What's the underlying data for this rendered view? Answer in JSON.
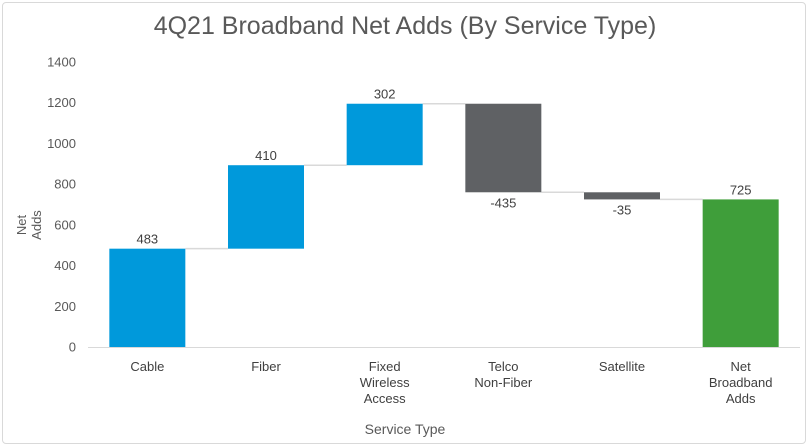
{
  "chart_data": {
    "type": "bar",
    "subtype": "waterfall",
    "title": "4Q21 Broadband Net Adds (By Service Type)",
    "xlabel": "Service Type",
    "ylabel": "Net Adds",
    "ylim": [
      0,
      1400
    ],
    "yticks": [
      "0",
      "200",
      "400",
      "600",
      "800",
      "1000",
      "1200",
      "1400"
    ],
    "categories": [
      [
        "Cable"
      ],
      [
        "Fiber"
      ],
      [
        "Fixed",
        "Wireless",
        "Access"
      ],
      [
        "Telco",
        "Non-Fiber"
      ],
      [
        "Satellite"
      ],
      [
        "Net",
        "Broadband",
        "Adds"
      ]
    ],
    "values": [
      483,
      410,
      302,
      -435,
      -35,
      725
    ],
    "data_labels": [
      "483",
      "410",
      "302",
      "-435",
      "-35",
      "725"
    ],
    "is_total": [
      false,
      false,
      false,
      false,
      false,
      true
    ],
    "grid": false,
    "legend": "none",
    "colors": {
      "increase": "#0099db",
      "decrease": "#5f6164",
      "total": "#3f9e3a",
      "connector": "#d9d9d9",
      "axis": "#d9d9d9",
      "text": "#595959"
    }
  }
}
